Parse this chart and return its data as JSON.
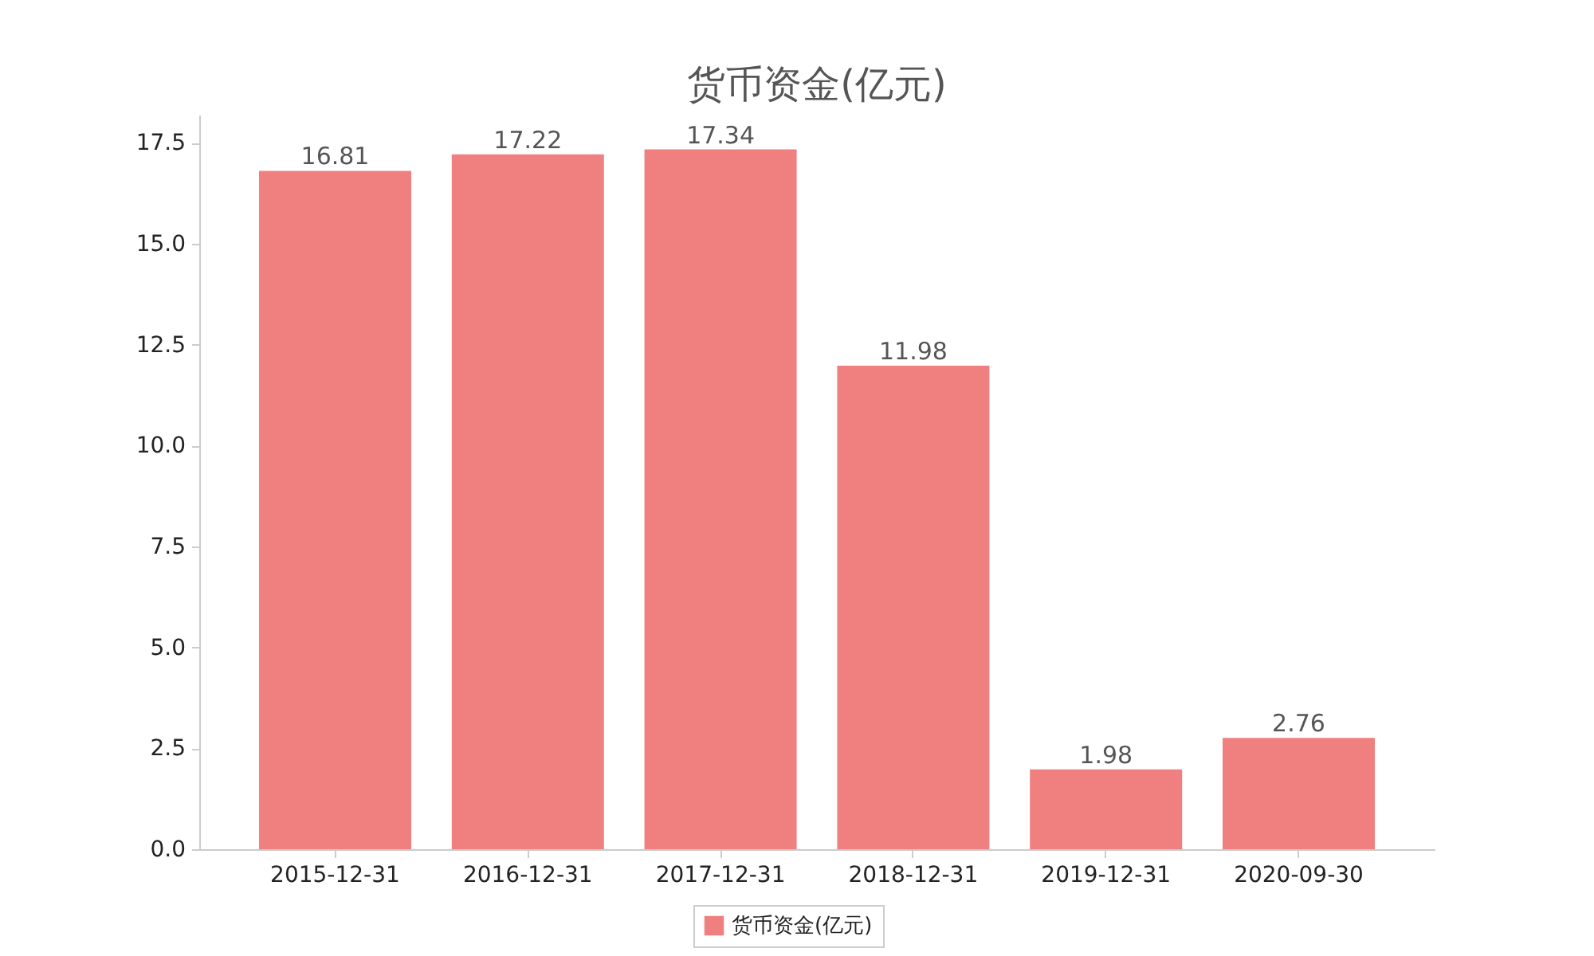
{
  "chart_data": {
    "type": "bar",
    "title": "货币资金(亿元)",
    "categories": [
      "2015-12-31",
      "2016-12-31",
      "2017-12-31",
      "2018-12-31",
      "2019-12-31",
      "2020-09-30"
    ],
    "series": [
      {
        "name": "货币资金(亿元)",
        "color": "#f08080",
        "values": [
          16.81,
          17.22,
          17.34,
          11.98,
          1.98,
          2.76
        ]
      }
    ],
    "ylim": [
      0,
      18.2
    ],
    "yticks": [
      {
        "value": 0,
        "label": "0.0"
      },
      2.5,
      {
        "value": 5,
        "label": "5.0"
      },
      7.5,
      {
        "value": 10,
        "label": "10.0"
      },
      12.5,
      {
        "value": 15,
        "label": "15.0"
      },
      17.5
    ],
    "grid": false,
    "legend": "bottom",
    "data_labels": true
  }
}
